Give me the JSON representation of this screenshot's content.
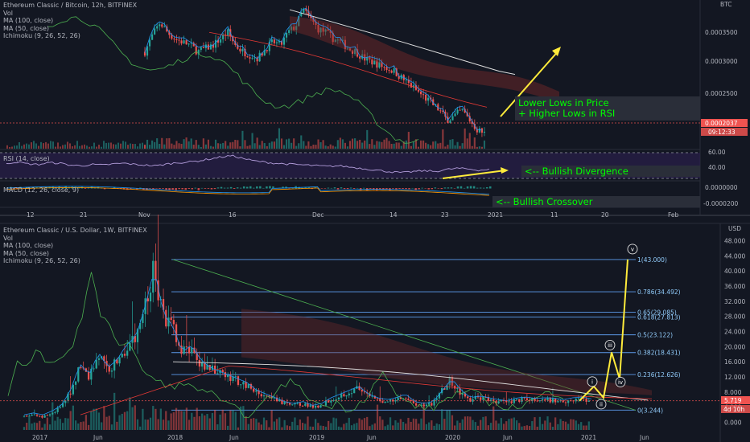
{
  "top_chart": {
    "legend": [
      "Ethereum Classic / Bitcoin, 12h, BITFINEX",
      "Vol",
      "MA (100, close)",
      "MA (50, close)",
      "Ichimoku (9, 26, 52, 26)"
    ],
    "currency": "BTC",
    "price_ticks": [
      "0.0003500",
      "0.0003000",
      "0.0002500"
    ],
    "last_price": "0.0002037",
    "countdown": "09:12:33",
    "annotation_line1": "Lower Lows in Price",
    "annotation_line2": "+ Higher Lows in RSI",
    "rsi_legend": "RSI (14, close)",
    "rsi_ticks": [
      "60.00",
      "40.00"
    ],
    "rsi_annotation": "<-- Bullish Divergence",
    "macd_legend": "MACD (12, 26, close, 9)",
    "macd_ticks": [
      "0.0000000",
      "-0.0000200"
    ],
    "macd_annotation": "<-- Bullish Crossover",
    "time_axis": [
      "12",
      "21",
      "Nov",
      "16",
      "Dec",
      "14",
      "23",
      "2021",
      "11",
      "20",
      "Feb"
    ]
  },
  "bottom_chart": {
    "legend": [
      "Ethereum Classic / U.S. Dollar, 1W, BITFINEX",
      "Vol",
      "MA (100, close)",
      "MA (50, close)",
      "Ichimoku (9, 26, 52, 26)"
    ],
    "currency": "USD",
    "last_price": "5.719",
    "countdown": "4d 10h",
    "time_axis": [
      "2017",
      "Jun",
      "2018",
      "Jun",
      "2019",
      "Jun",
      "2020",
      "Jun",
      "2021",
      "Jun"
    ],
    "wave_labels": [
      "i",
      "ii",
      "iii",
      "iv",
      "v"
    ]
  },
  "colors": {
    "background": "#131722",
    "up_candle": "#26a69a",
    "down_candle": "#ef5350",
    "fib_line": "#5d9cec",
    "annotation_green": "#00ff00",
    "arrow_yellow": "#ffeb3b",
    "rsi_band": "#2a1f4a"
  },
  "chart_data": [
    {
      "type": "candlestick",
      "title": "Ethereum Classic / Bitcoin, 12h, BITFINEX",
      "ylim": [
        0.000205,
        0.00041
      ],
      "yticks": [
        0.00025,
        0.0003,
        0.00035
      ],
      "trend": [
        0.00033,
        0.000355,
        0.000375,
        0.00036,
        0.00035,
        0.000345,
        0.00034,
        0.00033,
        0.000335,
        0.00034,
        0.00035,
        0.00036,
        0.00034,
        0.00033,
        0.000325,
        0.00032,
        0.000335,
        0.000345,
        0.00034,
        0.00036,
        0.00037,
        0.000395,
        0.00038,
        0.000365,
        0.00036,
        0.00035,
        0.000345,
        0.000335,
        0.00033,
        0.00032,
        0.000315,
        0.00031,
        0.000305,
        0.0003,
        0.00029,
        0.00028,
        0.00027,
        0.00026,
        0.00025,
        0.00024,
        0.000225,
        0.00023,
        0.00024,
        0.000225,
        0.00021,
        0.0002037
      ],
      "last_price": 0.0002037
    },
    {
      "type": "line",
      "title": "RSI (14, close)",
      "ylim": [
        20,
        70
      ],
      "yticks": [
        40,
        60
      ],
      "values": [
        48,
        50,
        47,
        46,
        49,
        48,
        45,
        44,
        46,
        45,
        47,
        48,
        46,
        45,
        44,
        47,
        49,
        50,
        52,
        55,
        58,
        60,
        56,
        52,
        50,
        48,
        47,
        46,
        45,
        44,
        43,
        44,
        42,
        40,
        38,
        36,
        34,
        33,
        35,
        36,
        35,
        38,
        40,
        39,
        37,
        38
      ]
    },
    {
      "type": "bar",
      "title": "MACD (12, 26, close, 9)",
      "yticks": [
        0.0,
        -2e-05
      ]
    },
    {
      "type": "candlestick",
      "title": "Ethereum Classic / U.S. Dollar, 1W, BITFINEX",
      "ylim": [
        -2,
        50
      ],
      "yticks": [
        0,
        4,
        8,
        12,
        16,
        20,
        24,
        28,
        32,
        36,
        40,
        44,
        48
      ],
      "fib_levels": [
        {
          "ratio": "1",
          "price": 43.0,
          "label": "1(43.000)"
        },
        {
          "ratio": "0.786",
          "price": 34.492,
          "label": "0.786(34.492)"
        },
        {
          "ratio": "0.65",
          "price": 29.085,
          "label": "0.65(29.085)"
        },
        {
          "ratio": "0.618",
          "price": 27.813,
          "label": "0.618(27.813)"
        },
        {
          "ratio": "0.5",
          "price": 23.122,
          "label": "0.5(23.122)"
        },
        {
          "ratio": "0.382",
          "price": 18.431,
          "label": "0.382(18.431)"
        },
        {
          "ratio": "0.236",
          "price": 12.626,
          "label": "0.236(12.626)"
        },
        {
          "ratio": "0",
          "price": 3.244,
          "label": "0(3.244)"
        }
      ],
      "trend": [
        1.5,
        2,
        1.5,
        2.5,
        4,
        8,
        15,
        12,
        18,
        14,
        16,
        20,
        22,
        30,
        40,
        28,
        25,
        18,
        20,
        16,
        14,
        13,
        12,
        11,
        10,
        8,
        7,
        6,
        5,
        4.5,
        5,
        4,
        4.5,
        6,
        7,
        8,
        9,
        7,
        6,
        5.5,
        6,
        7,
        5,
        4.5,
        5,
        8,
        11,
        8,
        6,
        6.5,
        6,
        5.5,
        5.2,
        6,
        6.2,
        5.8,
        6,
        5.9,
        5.5,
        6,
        6.2,
        5.7
      ],
      "last_price": 5.719,
      "projection": [
        5.7,
        9.5,
        6.5,
        18.5,
        11.5,
        43.0
      ]
    }
  ]
}
